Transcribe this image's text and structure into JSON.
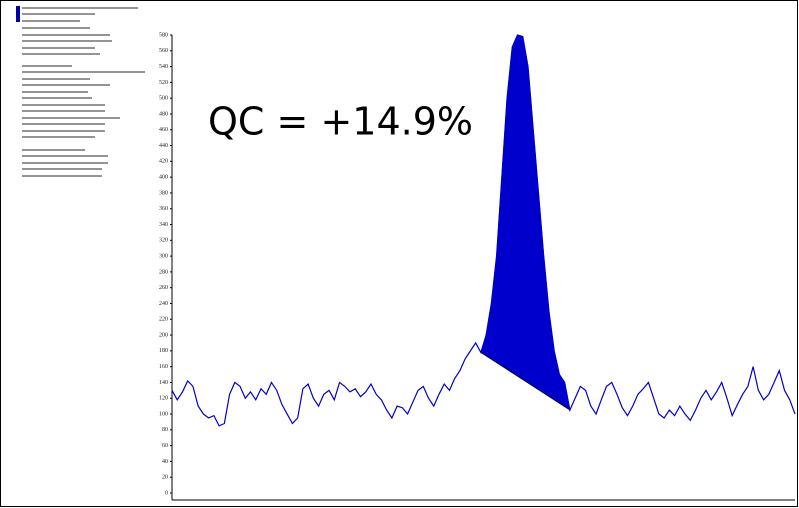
{
  "chart_data": {
    "type": "line",
    "annotation": "QC = +14.9%",
    "values": [
      130,
      118,
      128,
      142,
      135,
      110,
      100,
      95,
      98,
      85,
      88,
      125,
      140,
      135,
      120,
      128,
      118,
      132,
      125,
      140,
      130,
      112,
      100,
      88,
      95,
      132,
      138,
      120,
      110,
      125,
      130,
      118,
      140,
      135,
      128,
      132,
      122,
      128,
      138,
      125,
      118,
      105,
      95,
      110,
      108,
      100,
      115,
      130,
      135,
      120,
      110,
      125,
      138,
      130,
      145,
      155,
      170,
      180,
      190,
      178,
      200,
      240,
      300,
      400,
      500,
      565,
      580,
      578,
      540,
      460,
      380,
      300,
      230,
      180,
      150,
      140,
      105,
      120,
      135,
      130,
      110,
      100,
      118,
      135,
      140,
      125,
      108,
      98,
      110,
      125,
      132,
      140,
      120,
      100,
      95,
      105,
      98,
      110,
      100,
      92,
      105,
      120,
      130,
      118,
      128,
      140,
      120,
      98,
      112,
      125,
      135,
      160,
      130,
      118,
      125,
      140,
      155,
      130,
      118,
      100
    ],
    "color": "#0000cc",
    "peak_fill": "#0000cc",
    "ylim": [
      0,
      580
    ],
    "yticks": [
      0,
      20,
      40,
      60,
      80,
      100,
      120,
      140,
      160,
      180,
      200,
      220,
      240,
      260,
      280,
      300,
      320,
      340,
      360,
      380,
      400,
      420,
      440,
      460,
      480,
      500,
      520,
      540,
      560,
      580
    ]
  }
}
